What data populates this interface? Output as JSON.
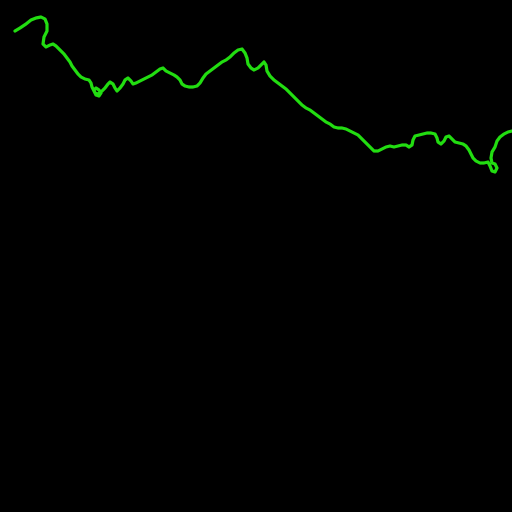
{
  "map": {
    "background_color": "#000000",
    "feature": {
      "type": "river-line",
      "color": "#22dd11"
    }
  }
}
